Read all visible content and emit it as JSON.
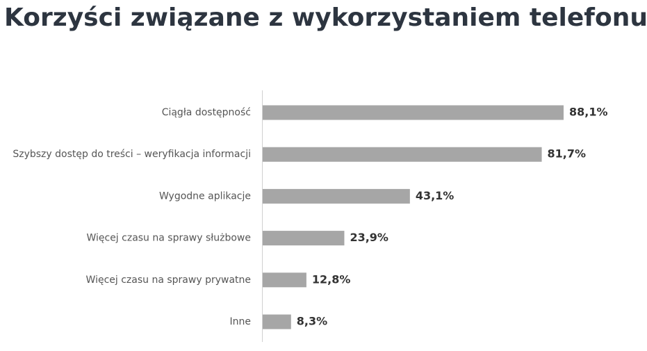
{
  "chart_data": {
    "type": "hbar",
    "title": "Korzyści związane z wykorzystaniem telefonu",
    "categories": [
      "Ciągła dostępność",
      "Szybszy dostęp do treści – weryfikacja informacji",
      "Wygodne aplikacje",
      "Więcej czasu na sprawy służbowe",
      "Więcej czasu na sprawy prywatne",
      "Inne"
    ],
    "values": [
      88.1,
      81.7,
      43.1,
      23.9,
      12.8,
      8.3
    ],
    "value_labels": [
      "88,1%",
      "81,7%",
      "43,1%",
      "23,9%",
      "12,8%",
      "8,3%"
    ],
    "color": "#a6a6a6"
  }
}
